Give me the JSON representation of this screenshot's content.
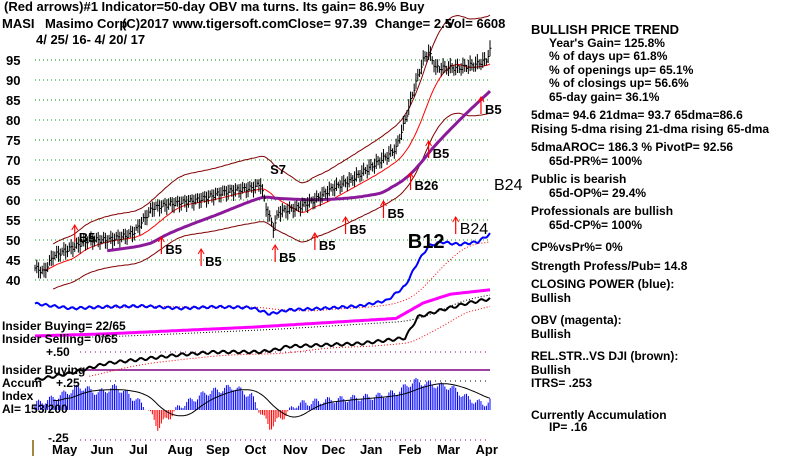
{
  "header": {
    "line1": "(Red arrows)#1 Indicator=50-day OBV ma turns. Its gain= 86.9% Buy",
    "symbol": "MASI",
    "company": "Masimo Corp",
    "copyright": "(C)2017 www.tigersoft.com",
    "close": "Close=  97.39",
    "change": "Change= 2.5",
    "vol": "Vol=  6608",
    "date_range": "4/ 25/ 16- 4/ 20/ 17"
  },
  "stats": {
    "trend_title": "BULLISH PRICE TREND",
    "years_gain": "Year's Gain= 125.8%",
    "days_up": "% of days up= 61.8%",
    "openings_up": "% of openings up= 65.1%",
    "closings_up": "% of closings up= 56.6%",
    "gain_65d": "65-day gain= 36.1%",
    "dma": "5dma= 94.6 21dma= 93.7 65dma=86.6",
    "rising": "Rising 5-dma  rising 21-dma  rising 65-dma",
    "aroc": "5dmaAROC= 186.3 %  PivotP= 92.56",
    "pr": "65d-PR%= 100%",
    "public": "Public is bearish",
    "op": "65d-OP%= 29.4%",
    "pros": "Professionals are bullish",
    "cp": "65d-CP%= 100%",
    "cpvspr": "CP%vsPr%=  0%",
    "strength": "Strength Profess/Pub= 14.8",
    "closing_power": "CLOSING POWER (blue):",
    "closing_power_val": "Bullish",
    "obv": "OBV (magenta):",
    "obv_val": "Bullish",
    "relstr": "REL.STR..VS DJI (brown):",
    "relstr_val": "Bullish",
    "itrs": "ITRS= .253",
    "accum": "Currently Accumulation",
    "ip": "IP=  .16"
  },
  "lower_labels": {
    "insider_buying_count": "Insider Buying= 22/65",
    "insider_selling_count": "Insider Selling= 0/65",
    "plus50": "+.50",
    "insider_buying": "Insider Buying",
    "accum": "Accum",
    "plus25": "+.25",
    "index": "Index",
    "ai": "AI= 153/200",
    "minus25": "-.25"
  },
  "colors": {
    "price_bar": "#000000",
    "ma21": "#ff0000",
    "ma65": "#8b1a9b",
    "band": "#800000",
    "grid": "#009900",
    "closing_power": "#0000ff",
    "obv": "#ff00ff",
    "relstr": "#000000",
    "ai_pos": "#0000ff",
    "ai_neg": "#ff0000",
    "signal": "#ff0000"
  },
  "chart_data": {
    "type": "line",
    "title": "MASI Masimo Corp",
    "x_months": [
      "May",
      "Jun",
      "Jul",
      "Aug",
      "Sep",
      "Oct",
      "Nov",
      "Dec",
      "Jan",
      "Feb",
      "Mar",
      "Apr"
    ],
    "y_ticks": [
      95,
      90,
      85,
      80,
      75,
      70,
      65,
      60,
      55,
      50,
      45,
      40
    ],
    "ylim": [
      37,
      100
    ],
    "trading_days": 252,
    "close_keypoints": [
      [
        0,
        43
      ],
      [
        5,
        42
      ],
      [
        10,
        46
      ],
      [
        20,
        48
      ],
      [
        30,
        50
      ],
      [
        40,
        50
      ],
      [
        50,
        51
      ],
      [
        55,
        52
      ],
      [
        60,
        55
      ],
      [
        65,
        58
      ],
      [
        75,
        59
      ],
      [
        90,
        60
      ],
      [
        105,
        62
      ],
      [
        120,
        63
      ],
      [
        125,
        64
      ],
      [
        128,
        58
      ],
      [
        132,
        53
      ],
      [
        135,
        57
      ],
      [
        145,
        58
      ],
      [
        155,
        60
      ],
      [
        165,
        63
      ],
      [
        175,
        65
      ],
      [
        185,
        68
      ],
      [
        195,
        71
      ],
      [
        200,
        73
      ],
      [
        205,
        80
      ],
      [
        210,
        88
      ],
      [
        215,
        95
      ],
      [
        218,
        97
      ],
      [
        222,
        93
      ],
      [
        235,
        93
      ],
      [
        245,
        94
      ],
      [
        250,
        95
      ],
      [
        252,
        97.39
      ]
    ],
    "closing_power_keypoints": [
      [
        0,
        18
      ],
      [
        20,
        12
      ],
      [
        40,
        14
      ],
      [
        60,
        15
      ],
      [
        80,
        12
      ],
      [
        100,
        14
      ],
      [
        120,
        13
      ],
      [
        130,
        5
      ],
      [
        140,
        10
      ],
      [
        160,
        12
      ],
      [
        180,
        15
      ],
      [
        195,
        22
      ],
      [
        205,
        40
      ],
      [
        212,
        70
      ],
      [
        218,
        90
      ],
      [
        225,
        95
      ],
      [
        235,
        92
      ],
      [
        245,
        95
      ],
      [
        252,
        105
      ]
    ],
    "obv_keypoints": [
      [
        0,
        0
      ],
      [
        40,
        2
      ],
      [
        80,
        5
      ],
      [
        120,
        8
      ],
      [
        160,
        12
      ],
      [
        200,
        16
      ],
      [
        215,
        30
      ],
      [
        230,
        38
      ],
      [
        252,
        42
      ]
    ],
    "relstr_keypoints": [
      [
        0,
        0
      ],
      [
        20,
        5
      ],
      [
        40,
        12
      ],
      [
        60,
        15
      ],
      [
        80,
        18
      ],
      [
        100,
        20
      ],
      [
        125,
        20
      ],
      [
        135,
        22
      ],
      [
        140,
        24
      ],
      [
        180,
        26
      ],
      [
        205,
        30
      ],
      [
        212,
        45
      ],
      [
        225,
        50
      ],
      [
        240,
        55
      ],
      [
        252,
        58
      ]
    ],
    "ai_keypoints": [
      [
        0,
        0.05
      ],
      [
        10,
        0.1
      ],
      [
        25,
        0.2
      ],
      [
        35,
        0.15
      ],
      [
        45,
        0.2
      ],
      [
        55,
        0.1
      ],
      [
        62,
        0.02
      ],
      [
        68,
        -0.15
      ],
      [
        75,
        -0.05
      ],
      [
        80,
        0.03
      ],
      [
        95,
        0.15
      ],
      [
        110,
        0.2
      ],
      [
        120,
        0.12
      ],
      [
        126,
        -0.05
      ],
      [
        130,
        -0.15
      ],
      [
        138,
        -0.05
      ],
      [
        145,
        0.05
      ],
      [
        160,
        0.08
      ],
      [
        175,
        0.1
      ],
      [
        190,
        0.12
      ],
      [
        200,
        0.15
      ],
      [
        210,
        0.25
      ],
      [
        220,
        0.22
      ],
      [
        230,
        0.2
      ],
      [
        240,
        0.1
      ],
      [
        248,
        0.05
      ],
      [
        252,
        0.08
      ]
    ],
    "signals": [
      {
        "label": "B5",
        "day": 22,
        "price": 50,
        "big": false
      },
      {
        "label": "B5",
        "day": 70,
        "price": 47,
        "big": false
      },
      {
        "label": "B5",
        "day": 92,
        "price": 44,
        "big": false
      },
      {
        "label": "B5",
        "day": 133,
        "price": 45,
        "big": false
      },
      {
        "label": "B5",
        "day": 155,
        "price": 48,
        "big": false
      },
      {
        "label": "B5",
        "day": 172,
        "price": 52,
        "big": false
      },
      {
        "label": "B5",
        "day": 193,
        "price": 56,
        "big": false
      },
      {
        "label": "B5",
        "day": 218,
        "price": 71,
        "big": false
      },
      {
        "label": "B5",
        "day": 247,
        "price": 82,
        "big": false
      },
      {
        "label": "B26",
        "day": 208,
        "price": 63,
        "big": false
      },
      {
        "label": "S7",
        "day": 128,
        "price": 67,
        "big": false
      },
      {
        "label": "B12",
        "day": 212,
        "price": 49,
        "big": true
      },
      {
        "label": "B24",
        "day": 233,
        "price": 52,
        "big": false
      },
      {
        "label": "B24",
        "day": 254,
        "price": 63,
        "big": false
      }
    ]
  }
}
